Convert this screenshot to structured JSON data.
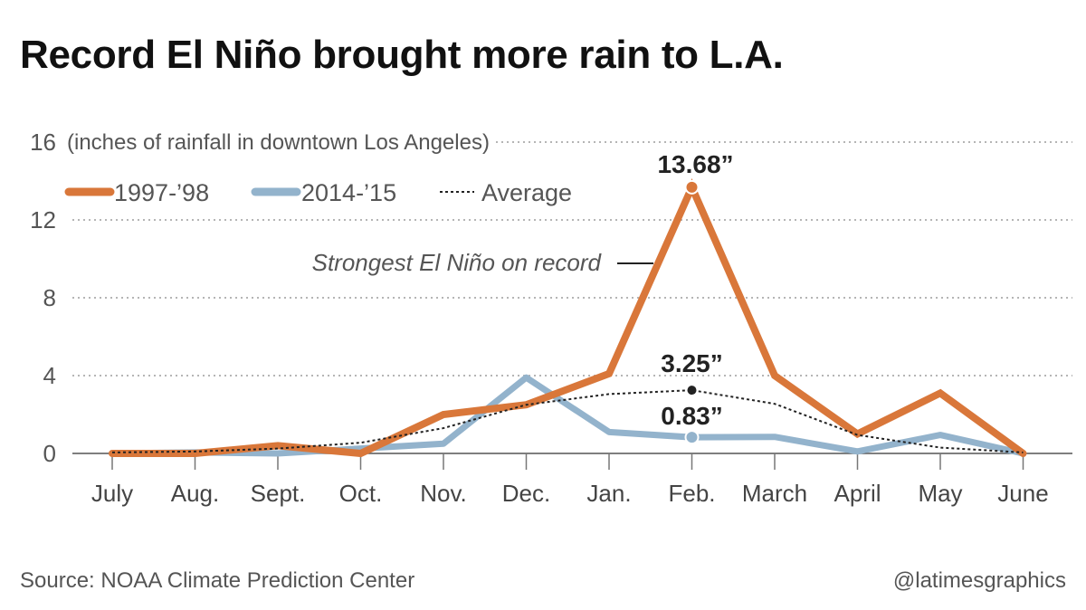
{
  "title": "Record El Niño brought more rain to L.A.",
  "source": "Source: NOAA Climate Prediction Center",
  "credit": "@latimesgraphics",
  "colors": {
    "series_1997": "#d9773a",
    "series_2014": "#93b3cc",
    "average": "#222222",
    "grid": "#b5b5b5",
    "text": "#555555"
  },
  "chart_data": {
    "type": "line",
    "unit_note": "(inches of rainfall in downtown Los Angeles)",
    "categories": [
      "July",
      "Aug.",
      "Sept.",
      "Oct.",
      "Nov.",
      "Dec.",
      "Jan.",
      "Feb.",
      "March",
      "April",
      "May",
      "June"
    ],
    "yticks": [
      0,
      4,
      8,
      12,
      16
    ],
    "ylim": [
      0,
      16
    ],
    "grid": "horizontal dotted",
    "legend": "top-left",
    "series": [
      {
        "name": "1997-’98",
        "color": "#d9773a",
        "style": "solid",
        "values": [
          0,
          0,
          0.4,
          0,
          2.0,
          2.5,
          4.1,
          13.68,
          4.0,
          1.0,
          3.1,
          0
        ]
      },
      {
        "name": "2014-’15",
        "color": "#93b3cc",
        "style": "solid",
        "values": [
          0,
          0.05,
          0,
          0.25,
          0.5,
          3.9,
          1.1,
          0.83,
          0.85,
          0.1,
          0.95,
          0
        ]
      },
      {
        "name": "Average",
        "color": "#222222",
        "style": "dotted",
        "values": [
          0.05,
          0.1,
          0.25,
          0.55,
          1.3,
          2.5,
          3.05,
          3.25,
          2.55,
          0.95,
          0.3,
          0.05
        ]
      }
    ],
    "annotations": [
      {
        "text": "13.68”",
        "series": 0,
        "index": 7
      },
      {
        "text": "3.25”",
        "series": 2,
        "index": 7
      },
      {
        "text": "0.83”",
        "series": 1,
        "index": 7
      },
      {
        "text": "Strongest El Niño on record",
        "series": 0,
        "index": 7
      }
    ]
  }
}
